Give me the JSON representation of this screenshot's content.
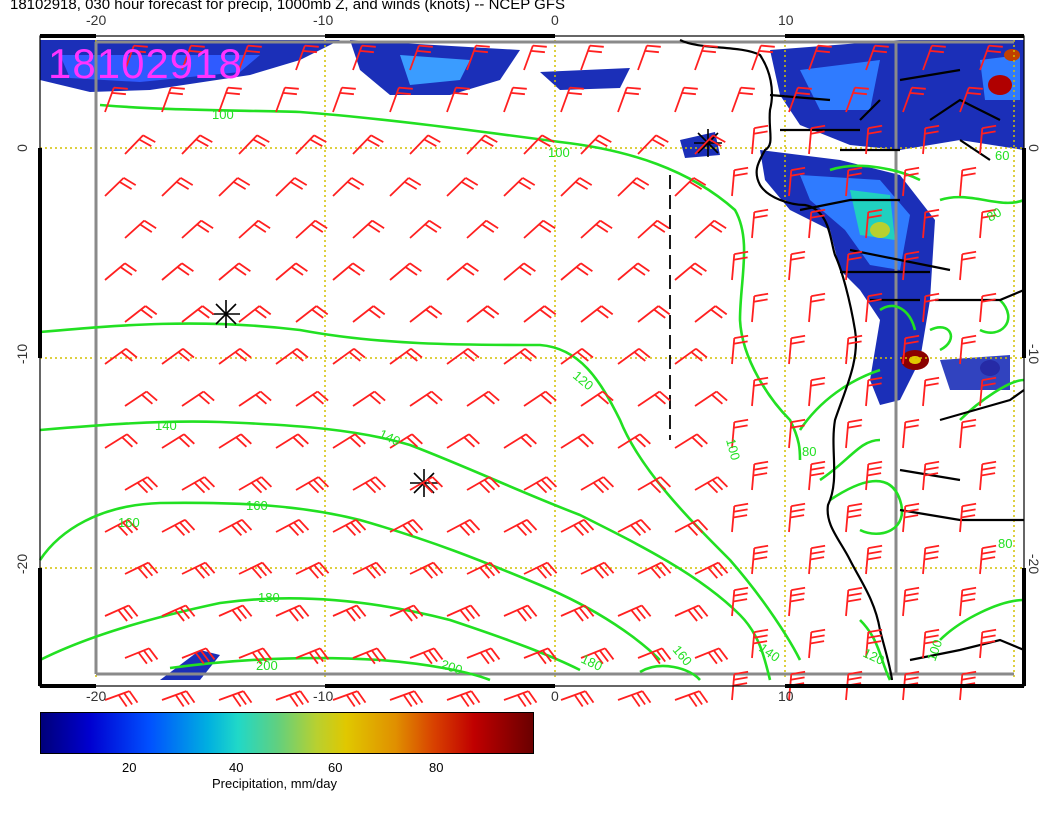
{
  "title": "18102918, 030 hour forecast for precip, 1000mb Z, and winds (knots) -- NCEP GFS",
  "datetime_stamp": "18102918",
  "axes": {
    "lon_ticks_top": [
      "-20",
      "-10",
      "0",
      "10"
    ],
    "lon_ticks_bottom": [
      "-20",
      "-10",
      "0",
      "10"
    ],
    "lat_ticks_left": [
      "0",
      "-10",
      "-20"
    ],
    "lat_ticks_right": [
      "0",
      "-10",
      "-20"
    ]
  },
  "contour_labels": [
    "100",
    "100",
    "120",
    "140",
    "140",
    "160",
    "160",
    "180",
    "200",
    "200",
    "180",
    "160",
    "140",
    "120",
    "100",
    "80",
    "80",
    "60",
    "80",
    "100"
  ],
  "colorbar": {
    "labels": [
      "20",
      "40",
      "60",
      "80"
    ],
    "title": "Precipitation, mm/day"
  },
  "colors": {
    "contour": "#22e022",
    "barb": "#ff2020",
    "coast": "#000000",
    "grid": "#d4c000",
    "stamp": "#ff33ff"
  }
}
